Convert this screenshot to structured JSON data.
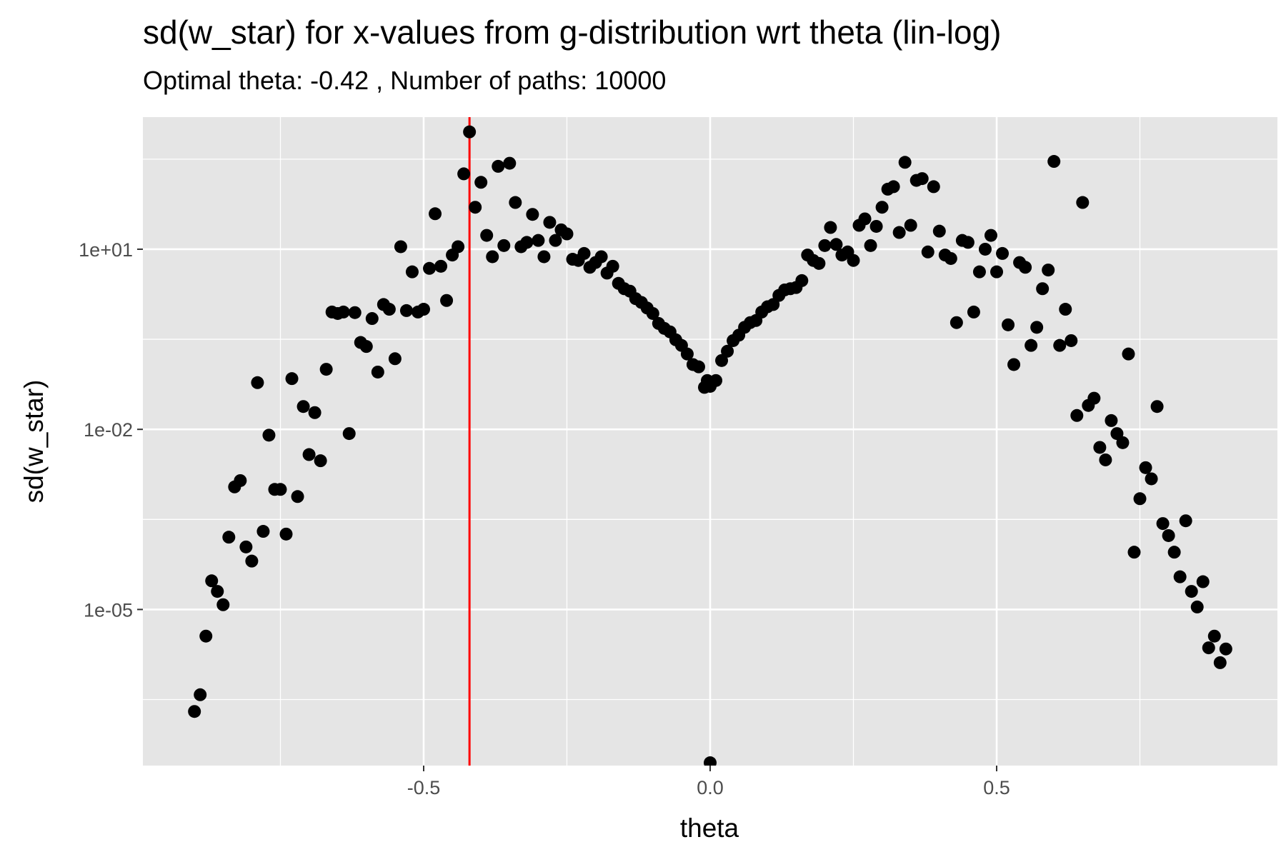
{
  "header": {
    "title": "sd(w_star) for x-values from g-distribution wrt theta (lin-log)",
    "subtitle": "Optimal theta:  -0.42 , Number of paths:  10000"
  },
  "colors": {
    "panel_background": "#e5e5e5",
    "grid": "#ffffff",
    "points": "#000000",
    "vline": "#ff0000",
    "tick_text": "#4d4d4d"
  },
  "chart_data": {
    "type": "scatter",
    "title": "sd(w_star) for x-values from g-distribution wrt theta (lin-log)",
    "subtitle": "Optimal theta:  -0.42 , Number of paths:  10000",
    "xlabel": "theta",
    "ylabel": "sd(w_star)",
    "xlim": [
      -0.99,
      0.99
    ],
    "ylim_log10": [
      -7.6,
      3.2
    ],
    "yscale": "log10",
    "grid": true,
    "x_ticks": [
      -0.5,
      0.0,
      0.5
    ],
    "x_tick_labels": [
      "-0.5",
      "0.0",
      "0.5"
    ],
    "y_ticks": [
      1e-05,
      0.01,
      10
    ],
    "y_tick_labels": [
      "1e-05",
      "1e-02",
      "1e+01"
    ],
    "vline": {
      "x": -0.42,
      "color": "#ff0000"
    },
    "points": [
      {
        "x": -0.9,
        "y": 2e-07
      },
      {
        "x": -0.89,
        "y": 3.8e-07
      },
      {
        "x": -0.88,
        "y": 3.6e-06
      },
      {
        "x": -0.87,
        "y": 3e-05
      },
      {
        "x": -0.86,
        "y": 2e-05
      },
      {
        "x": -0.85,
        "y": 1.2e-05
      },
      {
        "x": -0.84,
        "y": 0.00016
      },
      {
        "x": -0.83,
        "y": 0.0011
      },
      {
        "x": -0.82,
        "y": 0.0014
      },
      {
        "x": -0.81,
        "y": 0.00011
      },
      {
        "x": -0.8,
        "y": 6.4e-05
      },
      {
        "x": -0.79,
        "y": 0.06
      },
      {
        "x": -0.78,
        "y": 0.0002
      },
      {
        "x": -0.77,
        "y": 0.008
      },
      {
        "x": -0.76,
        "y": 0.001
      },
      {
        "x": -0.75,
        "y": 0.001
      },
      {
        "x": -0.74,
        "y": 0.00018
      },
      {
        "x": -0.73,
        "y": 0.07
      },
      {
        "x": -0.72,
        "y": 0.00076
      },
      {
        "x": -0.71,
        "y": 0.024
      },
      {
        "x": -0.7,
        "y": 0.0038
      },
      {
        "x": -0.69,
        "y": 0.019
      },
      {
        "x": -0.68,
        "y": 0.003
      },
      {
        "x": -0.67,
        "y": 0.1
      },
      {
        "x": -0.66,
        "y": 0.9
      },
      {
        "x": -0.65,
        "y": 0.85
      },
      {
        "x": -0.64,
        "y": 0.9
      },
      {
        "x": -0.63,
        "y": 0.0085
      },
      {
        "x": -0.62,
        "y": 0.88
      },
      {
        "x": -0.61,
        "y": 0.28
      },
      {
        "x": -0.6,
        "y": 0.24
      },
      {
        "x": -0.59,
        "y": 0.7
      },
      {
        "x": -0.58,
        "y": 0.09
      },
      {
        "x": -0.57,
        "y": 1.2
      },
      {
        "x": -0.56,
        "y": 1.0
      },
      {
        "x": -0.55,
        "y": 0.15
      },
      {
        "x": -0.54,
        "y": 11
      },
      {
        "x": -0.53,
        "y": 0.95
      },
      {
        "x": -0.52,
        "y": 4.2
      },
      {
        "x": -0.51,
        "y": 0.9
      },
      {
        "x": -0.5,
        "y": 1.0
      },
      {
        "x": -0.49,
        "y": 4.8
      },
      {
        "x": -0.48,
        "y": 39
      },
      {
        "x": -0.47,
        "y": 5.2
      },
      {
        "x": -0.46,
        "y": 1.4
      },
      {
        "x": -0.45,
        "y": 8
      },
      {
        "x": -0.44,
        "y": 11
      },
      {
        "x": -0.43,
        "y": 180
      },
      {
        "x": -0.42,
        "y": 900
      },
      {
        "x": -0.41,
        "y": 50
      },
      {
        "x": -0.4,
        "y": 130
      },
      {
        "x": -0.39,
        "y": 17
      },
      {
        "x": -0.38,
        "y": 7.5
      },
      {
        "x": -0.37,
        "y": 240
      },
      {
        "x": -0.36,
        "y": 11.5
      },
      {
        "x": -0.35,
        "y": 270
      },
      {
        "x": -0.34,
        "y": 60
      },
      {
        "x": -0.33,
        "y": 11
      },
      {
        "x": -0.32,
        "y": 13
      },
      {
        "x": -0.31,
        "y": 38
      },
      {
        "x": -0.3,
        "y": 14
      },
      {
        "x": -0.29,
        "y": 7.5
      },
      {
        "x": -0.28,
        "y": 28
      },
      {
        "x": -0.27,
        "y": 14
      },
      {
        "x": -0.26,
        "y": 21
      },
      {
        "x": -0.25,
        "y": 18
      },
      {
        "x": -0.24,
        "y": 6.8
      },
      {
        "x": -0.23,
        "y": 6.5
      },
      {
        "x": -0.22,
        "y": 8.5
      },
      {
        "x": -0.21,
        "y": 5
      },
      {
        "x": -0.2,
        "y": 6
      },
      {
        "x": -0.19,
        "y": 7.5
      },
      {
        "x": -0.18,
        "y": 4
      },
      {
        "x": -0.17,
        "y": 5.2
      },
      {
        "x": -0.16,
        "y": 2.7
      },
      {
        "x": -0.15,
        "y": 2.2
      },
      {
        "x": -0.14,
        "y": 2.0
      },
      {
        "x": -0.13,
        "y": 1.5
      },
      {
        "x": -0.12,
        "y": 1.3
      },
      {
        "x": -0.11,
        "y": 1.05
      },
      {
        "x": -0.1,
        "y": 0.85
      },
      {
        "x": -0.09,
        "y": 0.58
      },
      {
        "x": -0.08,
        "y": 0.48
      },
      {
        "x": -0.07,
        "y": 0.42
      },
      {
        "x": -0.06,
        "y": 0.31
      },
      {
        "x": -0.05,
        "y": 0.25
      },
      {
        "x": -0.04,
        "y": 0.18
      },
      {
        "x": -0.03,
        "y": 0.12
      },
      {
        "x": -0.02,
        "y": 0.11
      },
      {
        "x": -0.01,
        "y": 0.05
      },
      {
        "x": -0.005,
        "y": 0.065
      },
      {
        "x": 0.0,
        "y": 0.052
      },
      {
        "x": 0.0,
        "y": 2.8e-08
      },
      {
        "x": 0.01,
        "y": 0.065
      },
      {
        "x": 0.02,
        "y": 0.14
      },
      {
        "x": 0.03,
        "y": 0.2
      },
      {
        "x": 0.04,
        "y": 0.3
      },
      {
        "x": 0.05,
        "y": 0.37
      },
      {
        "x": 0.06,
        "y": 0.5
      },
      {
        "x": 0.07,
        "y": 0.6
      },
      {
        "x": 0.08,
        "y": 0.65
      },
      {
        "x": 0.09,
        "y": 0.9
      },
      {
        "x": 0.1,
        "y": 1.1
      },
      {
        "x": 0.11,
        "y": 1.2
      },
      {
        "x": 0.12,
        "y": 1.7
      },
      {
        "x": 0.13,
        "y": 2.1
      },
      {
        "x": 0.14,
        "y": 2.2
      },
      {
        "x": 0.15,
        "y": 2.3
      },
      {
        "x": 0.16,
        "y": 3.0
      },
      {
        "x": 0.17,
        "y": 8
      },
      {
        "x": 0.18,
        "y": 6.5
      },
      {
        "x": 0.19,
        "y": 5.8
      },
      {
        "x": 0.2,
        "y": 11.5
      },
      {
        "x": 0.21,
        "y": 23
      },
      {
        "x": 0.22,
        "y": 12
      },
      {
        "x": 0.23,
        "y": 8
      },
      {
        "x": 0.24,
        "y": 9
      },
      {
        "x": 0.25,
        "y": 6.5
      },
      {
        "x": 0.26,
        "y": 25
      },
      {
        "x": 0.27,
        "y": 32
      },
      {
        "x": 0.28,
        "y": 11.5
      },
      {
        "x": 0.29,
        "y": 24
      },
      {
        "x": 0.3,
        "y": 50
      },
      {
        "x": 0.31,
        "y": 100
      },
      {
        "x": 0.32,
        "y": 110
      },
      {
        "x": 0.33,
        "y": 19
      },
      {
        "x": 0.34,
        "y": 280
      },
      {
        "x": 0.35,
        "y": 25
      },
      {
        "x": 0.36,
        "y": 140
      },
      {
        "x": 0.37,
        "y": 150
      },
      {
        "x": 0.38,
        "y": 9
      },
      {
        "x": 0.39,
        "y": 110
      },
      {
        "x": 0.4,
        "y": 20
      },
      {
        "x": 0.41,
        "y": 8
      },
      {
        "x": 0.42,
        "y": 7
      },
      {
        "x": 0.43,
        "y": 0.6
      },
      {
        "x": 0.44,
        "y": 14
      },
      {
        "x": 0.45,
        "y": 13
      },
      {
        "x": 0.46,
        "y": 0.9
      },
      {
        "x": 0.47,
        "y": 4.2
      },
      {
        "x": 0.48,
        "y": 10
      },
      {
        "x": 0.49,
        "y": 17
      },
      {
        "x": 0.5,
        "y": 4.2
      },
      {
        "x": 0.51,
        "y": 8.5
      },
      {
        "x": 0.52,
        "y": 0.55
      },
      {
        "x": 0.53,
        "y": 0.12
      },
      {
        "x": 0.54,
        "y": 6
      },
      {
        "x": 0.55,
        "y": 5
      },
      {
        "x": 0.56,
        "y": 0.25
      },
      {
        "x": 0.57,
        "y": 0.5
      },
      {
        "x": 0.58,
        "y": 2.2
      },
      {
        "x": 0.59,
        "y": 4.5
      },
      {
        "x": 0.6,
        "y": 290
      },
      {
        "x": 0.61,
        "y": 0.25
      },
      {
        "x": 0.62,
        "y": 1.0
      },
      {
        "x": 0.63,
        "y": 0.3
      },
      {
        "x": 0.64,
        "y": 0.017
      },
      {
        "x": 0.65,
        "y": 60
      },
      {
        "x": 0.66,
        "y": 0.025
      },
      {
        "x": 0.67,
        "y": 0.033
      },
      {
        "x": 0.68,
        "y": 0.005
      },
      {
        "x": 0.69,
        "y": 0.0031
      },
      {
        "x": 0.7,
        "y": 0.014
      },
      {
        "x": 0.71,
        "y": 0.0085
      },
      {
        "x": 0.72,
        "y": 0.006
      },
      {
        "x": 0.73,
        "y": 0.18
      },
      {
        "x": 0.74,
        "y": 9e-05
      },
      {
        "x": 0.75,
        "y": 0.0007
      },
      {
        "x": 0.76,
        "y": 0.0023
      },
      {
        "x": 0.77,
        "y": 0.0015
      },
      {
        "x": 0.78,
        "y": 0.024
      },
      {
        "x": 0.79,
        "y": 0.00027
      },
      {
        "x": 0.8,
        "y": 0.00017
      },
      {
        "x": 0.81,
        "y": 9e-05
      },
      {
        "x": 0.82,
        "y": 3.5e-05
      },
      {
        "x": 0.83,
        "y": 0.0003
      },
      {
        "x": 0.84,
        "y": 2e-05
      },
      {
        "x": 0.85,
        "y": 1.1e-05
      },
      {
        "x": 0.86,
        "y": 2.9e-05
      },
      {
        "x": 0.87,
        "y": 2.3e-06
      },
      {
        "x": 0.88,
        "y": 3.6e-06
      },
      {
        "x": 0.89,
        "y": 1.3e-06
      },
      {
        "x": 0.9,
        "y": 2.2e-06
      }
    ]
  }
}
